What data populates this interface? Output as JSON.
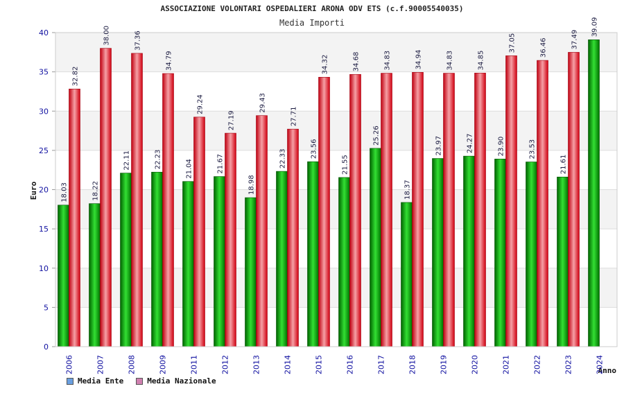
{
  "chart_data": {
    "type": "bar",
    "title": "ASSOCIAZIONE VOLONTARI OSPEDALIERI ARONA ODV ETS (c.f.90005540035)",
    "subtitle": "Media Importi",
    "xlabel": "Anno",
    "ylabel": "Euro",
    "ylim": [
      0,
      40
    ],
    "yticks": [
      0,
      5,
      10,
      15,
      20,
      25,
      30,
      35,
      40
    ],
    "grid": true,
    "legend_position": "bottom-left",
    "categories": [
      "2006",
      "2007",
      "2008",
      "2009",
      "2011",
      "2012",
      "2013",
      "2014",
      "2015",
      "2016",
      "2017",
      "2018",
      "2019",
      "2020",
      "2021",
      "2022",
      "2023",
      "2024"
    ],
    "series": [
      {
        "name": "Media Ente",
        "color": "#00b000",
        "legend_color": "#6a9fe0",
        "values": [
          18.03,
          18.22,
          22.11,
          22.23,
          21.04,
          21.67,
          18.98,
          22.33,
          23.56,
          21.55,
          25.26,
          18.37,
          23.97,
          24.27,
          23.9,
          23.53,
          21.61,
          39.09
        ],
        "labels": [
          "18.03",
          "18.22",
          "22.11",
          "22.23",
          "21.04",
          "21.67",
          "18.98",
          "22.33",
          "23.56",
          "21.55",
          "25.26",
          "18.37",
          "23.97",
          "24.27",
          "23.90",
          "23.53",
          "21.61",
          "39.09"
        ]
      },
      {
        "name": "Media Nazionale",
        "color": "#e01020",
        "legend_color": "#d080b0",
        "values": [
          32.82,
          38.0,
          37.36,
          34.79,
          29.24,
          27.19,
          29.43,
          27.71,
          34.32,
          34.68,
          34.83,
          34.94,
          34.83,
          34.85,
          37.05,
          36.46,
          37.49,
          null
        ],
        "labels": [
          "32.82",
          "38.00",
          "37.36",
          "34.79",
          "29.24",
          "27.19",
          "29.43",
          "27.71",
          "34.32",
          "34.68",
          "34.83",
          "34.94",
          "34.83",
          "34.85",
          "37.05",
          "36.46",
          "37.49",
          ""
        ]
      }
    ]
  }
}
